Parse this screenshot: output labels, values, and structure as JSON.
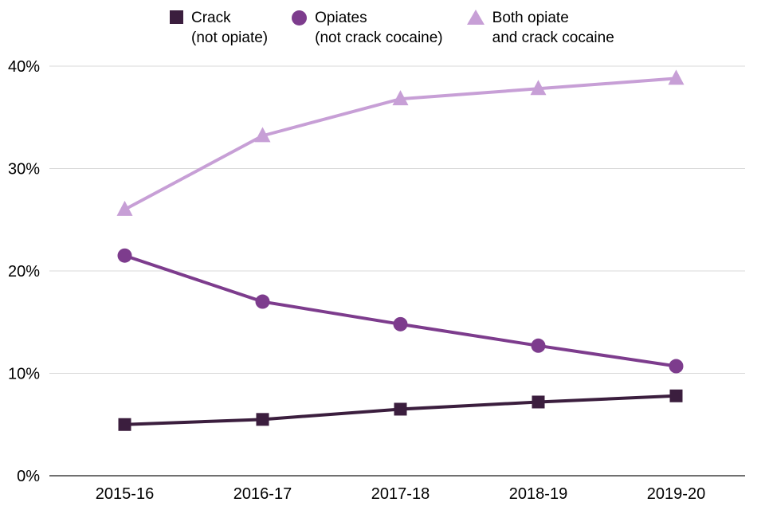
{
  "chart_data": {
    "type": "line",
    "categories": [
      "2015-16",
      "2016-17",
      "2017-18",
      "2018-19",
      "2019-20"
    ],
    "series": [
      {
        "name": "Crack\n(not opiate)",
        "marker": "square",
        "color": "#3b1e3e",
        "values": [
          5.0,
          5.5,
          6.5,
          7.2,
          7.8
        ]
      },
      {
        "name": "Opiates\n(not crack cocaine)",
        "marker": "circle",
        "color": "#7d3c8d",
        "values": [
          21.5,
          17.0,
          14.8,
          12.7,
          10.7
        ]
      },
      {
        "name": "Both opiate\nand crack cocaine",
        "marker": "triangle",
        "color": "#c79fd6",
        "values": [
          26.0,
          33.2,
          36.8,
          37.8,
          38.8
        ]
      }
    ],
    "title": "",
    "xlabel": "",
    "ylabel": "",
    "yticks": [
      0,
      10,
      20,
      30,
      40
    ],
    "ytick_format": "{v}%",
    "ylim": [
      0,
      40
    ],
    "grid": "horizontal",
    "legend_position": "top",
    "colors": {
      "grid": "#d9d9d9",
      "axis": "#404040",
      "text": "#000000"
    }
  }
}
